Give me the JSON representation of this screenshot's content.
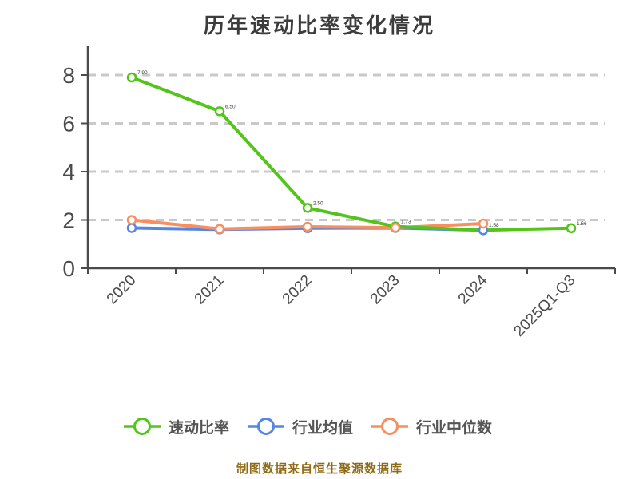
{
  "title": "历年速动比率变化情况",
  "footer": "制图数据来自恒生聚源数据库",
  "colors": {
    "quick_ratio": "#52c41a",
    "industry_average": "#5585e5",
    "industry_median": "#f98e5f",
    "axis": "#4a4a4a",
    "grid": "#c9c9c9",
    "tick_label": "#4a4a4a",
    "title_text": "#3c3c3c",
    "legend_text": "#555555",
    "footer_text": "#8f6a14",
    "marker_fill": "#ffffff",
    "point_label": "#333333"
  },
  "legend": {
    "items": [
      {
        "label": "速动比率"
      },
      {
        "label": "行业均值"
      },
      {
        "label": "行业中位数"
      }
    ]
  },
  "chart_data": {
    "type": "line",
    "title": "历年速动比率变化情况",
    "categories": [
      "2020",
      "2021",
      "2022",
      "2023",
      "2024",
      "2025Q1-Q3"
    ],
    "series": [
      {
        "name": "速动比率",
        "key": "quick-ratio",
        "color": "#52c41a",
        "values": [
          7.9,
          6.5,
          2.5,
          1.73,
          1.58,
          1.66
        ],
        "show_point_labels": true
      },
      {
        "name": "行业均值",
        "key": "industry-average",
        "color": "#5585e5",
        "values": [
          1.67,
          1.61,
          1.66,
          1.67,
          1.58,
          null
        ],
        "show_point_labels": false
      },
      {
        "name": "行业中位数",
        "key": "industry-median",
        "color": "#f98e5f",
        "values": [
          2.0,
          1.63,
          1.72,
          1.68,
          1.85,
          null
        ],
        "show_point_labels": false
      }
    ],
    "xlabel": "",
    "ylabel": "",
    "ylim": [
      0,
      8
    ],
    "yticks": [
      0,
      2,
      4,
      6,
      8
    ],
    "grid": "horizontal-dashed",
    "legend_position": "bottom",
    "x_tick_rotation_deg": 45,
    "source_note": "制图数据来自恒生聚源数据库"
  }
}
